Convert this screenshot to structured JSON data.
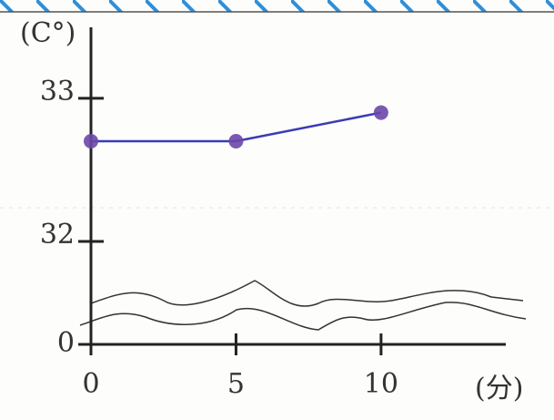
{
  "chart_data": {
    "type": "line",
    "y_label": "(C°)",
    "x_label": "(分)",
    "x": [
      0,
      5,
      10
    ],
    "series": [
      {
        "name": null,
        "color": "#3b3bb5",
        "marker_color": "#6b48a8",
        "values": [
          32.7,
          32.7,
          32.9
        ]
      }
    ],
    "xlim": [
      0,
      14.3
    ],
    "xticks": [
      0,
      5,
      10
    ],
    "ylim": [
      0,
      33.4
    ],
    "yticks": [
      0,
      32,
      33
    ],
    "y_axis_break": true
  }
}
